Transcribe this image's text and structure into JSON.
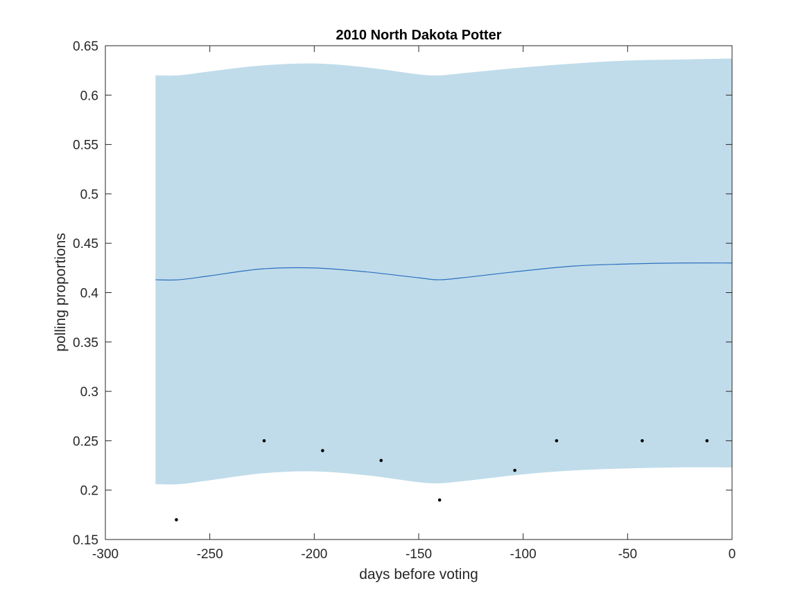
{
  "chart_data": {
    "type": "line",
    "title": "2010 North Dakota Potter",
    "xlabel": "days before voting",
    "ylabel": "polling proportions",
    "xlim": [
      -300,
      0
    ],
    "ylim": [
      0.15,
      0.65
    ],
    "xticks": [
      -300,
      -250,
      -200,
      -150,
      -100,
      -50,
      0
    ],
    "yticks": [
      0.15,
      0.2,
      0.25,
      0.3,
      0.35,
      0.4,
      0.45,
      0.5,
      0.55,
      0.6,
      0.65
    ],
    "xtick_labels": [
      "-300",
      "-250",
      "-200",
      "-150",
      "-100",
      "-50",
      "0"
    ],
    "ytick_labels": [
      "0.15",
      "0.2",
      "0.25",
      "0.3",
      "0.35",
      "0.4",
      "0.45",
      "0.5",
      "0.55",
      "0.6",
      "0.65"
    ],
    "grid": false,
    "colors": {
      "band": "#c0dcea",
      "line": "#2a6fbf",
      "points": "#000000",
      "axes": "#262626"
    },
    "trend": {
      "x": [
        -276,
        -265,
        -250,
        -225,
        -200,
        -175,
        -150,
        -140,
        -125,
        -100,
        -75,
        -50,
        -25,
        0
      ],
      "y": [
        0.413,
        0.413,
        0.417,
        0.424,
        0.425,
        0.421,
        0.415,
        0.413,
        0.416,
        0.422,
        0.427,
        0.429,
        0.43,
        0.43
      ]
    },
    "band": {
      "x": [
        -276,
        -265,
        -250,
        -225,
        -200,
        -175,
        -150,
        -140,
        -125,
        -100,
        -75,
        -50,
        -25,
        0
      ],
      "upper": [
        0.62,
        0.62,
        0.624,
        0.63,
        0.632,
        0.628,
        0.621,
        0.62,
        0.623,
        0.628,
        0.632,
        0.635,
        0.636,
        0.637
      ],
      "lower": [
        0.206,
        0.206,
        0.21,
        0.217,
        0.219,
        0.215,
        0.208,
        0.207,
        0.21,
        0.216,
        0.22,
        0.222,
        0.223,
        0.223
      ]
    },
    "polls": {
      "x": [
        -266,
        -224,
        -196,
        -168,
        -140,
        -104,
        -84,
        -43,
        -12
      ],
      "y": [
        0.17,
        0.25,
        0.24,
        0.23,
        0.19,
        0.22,
        0.25,
        0.25,
        0.25
      ]
    }
  }
}
